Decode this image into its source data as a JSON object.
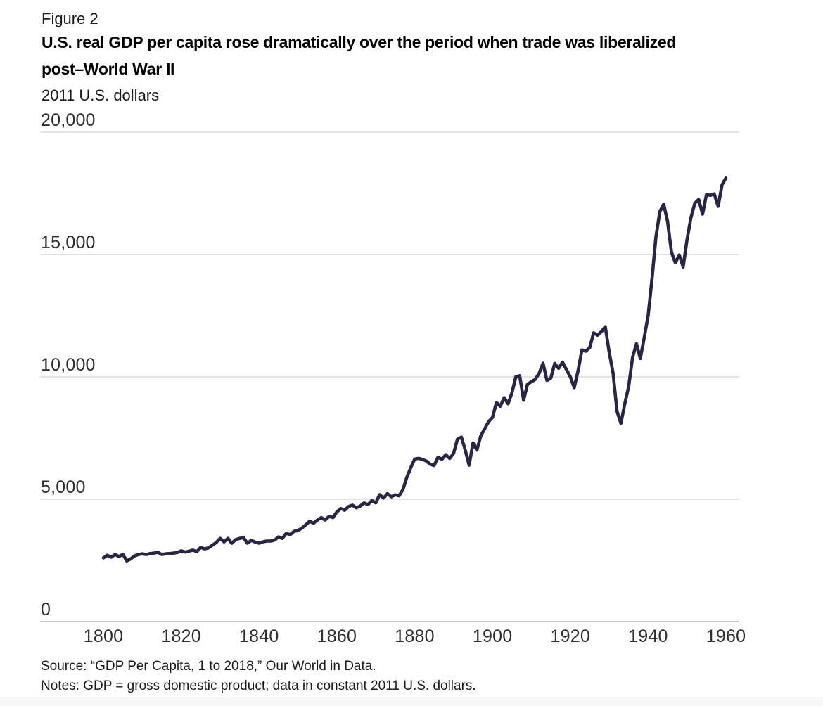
{
  "figure": {
    "label": "Figure 2",
    "title_line1": "U.S. real GDP per capita rose dramatically over the period when trade was liberalized",
    "title_line2": "post–World War II",
    "unit": "2011 U.S. dollars"
  },
  "footnotes": {
    "source": "Source: “GDP Per Capita, 1 to 2018,” Our World in Data.",
    "notes": "Notes: GDP = gross domestic product; data in constant 2011 U.S. dollars."
  },
  "colors": {
    "line": "#292544",
    "gridline": "#dcdcdc",
    "zero_line": "#c8c8c8",
    "text": "#1a1a1a",
    "tick_text": "#2e2e2e",
    "footer_strip": "#f6f6f7",
    "background": "#ffffff"
  },
  "chart_data": {
    "type": "line",
    "title": "U.S. real GDP per capita rose dramatically over the period when trade was liberalized post–World War II",
    "subtitle": "2011 U.S. dollars",
    "xlabel": "",
    "ylabel": "2011 U.S. dollars",
    "xlim": [
      1800,
      1960
    ],
    "ylim": [
      0,
      20000
    ],
    "grid": "horizontal",
    "legend": "none",
    "xticks": [
      {
        "value": 1800,
        "label": "1800"
      },
      {
        "value": 1820,
        "label": "1820"
      },
      {
        "value": 1840,
        "label": "1840"
      },
      {
        "value": 1860,
        "label": "1860"
      },
      {
        "value": 1880,
        "label": "1880"
      },
      {
        "value": 1900,
        "label": "1900"
      },
      {
        "value": 1920,
        "label": "1920"
      },
      {
        "value": 1940,
        "label": "1940"
      },
      {
        "value": 1960,
        "label": "1960"
      }
    ],
    "yticks": [
      {
        "value": 0,
        "label": "0"
      },
      {
        "value": 5000,
        "label": "5,000"
      },
      {
        "value": 10000,
        "label": "10,000"
      },
      {
        "value": 15000,
        "label": "15,000"
      },
      {
        "value": 20000,
        "label": "20,000"
      }
    ],
    "x_start": 1800,
    "x_end": 1960,
    "x_interval_years": 1,
    "series": [
      {
        "name": "U.S. real GDP per capita (2011 U.S. dollars)",
        "values": [
          2600,
          2710,
          2630,
          2740,
          2660,
          2740,
          2480,
          2560,
          2680,
          2740,
          2770,
          2740,
          2780,
          2800,
          2830,
          2740,
          2770,
          2780,
          2800,
          2820,
          2890,
          2840,
          2880,
          2920,
          2860,
          3030,
          2970,
          3010,
          3120,
          3230,
          3400,
          3260,
          3400,
          3200,
          3350,
          3400,
          3430,
          3200,
          3320,
          3250,
          3200,
          3260,
          3290,
          3290,
          3330,
          3460,
          3400,
          3610,
          3550,
          3690,
          3720,
          3820,
          3950,
          4100,
          4020,
          4150,
          4250,
          4150,
          4300,
          4250,
          4480,
          4620,
          4550,
          4700,
          4760,
          4650,
          4720,
          4850,
          4780,
          4950,
          4850,
          5190,
          5050,
          5230,
          5100,
          5180,
          5140,
          5400,
          5900,
          6290,
          6640,
          6670,
          6630,
          6560,
          6430,
          6380,
          6720,
          6630,
          6820,
          6670,
          6870,
          7450,
          7540,
          7010,
          6390,
          7300,
          7010,
          7590,
          7880,
          8170,
          8340,
          8950,
          8800,
          9150,
          8900,
          9350,
          10000,
          10050,
          9050,
          9700,
          9800,
          9900,
          10150,
          10560,
          9850,
          9950,
          10550,
          10350,
          10600,
          10300,
          10000,
          9560,
          10250,
          11100,
          11050,
          11200,
          11800,
          11700,
          11850,
          12050,
          11000,
          10150,
          8600,
          8100,
          8900,
          9600,
          10800,
          11350,
          10750,
          11600,
          12500,
          14000,
          15700,
          16750,
          17060,
          16350,
          15100,
          14660,
          14980,
          14490,
          15610,
          16500,
          17100,
          17250,
          16650,
          17450,
          17420,
          17480,
          16970,
          17850,
          18130
        ]
      }
    ]
  }
}
